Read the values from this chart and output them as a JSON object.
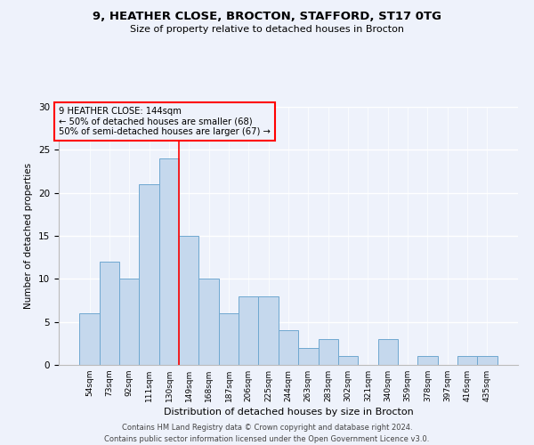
{
  "title1": "9, HEATHER CLOSE, BROCTON, STAFFORD, ST17 0TG",
  "title2": "Size of property relative to detached houses in Brocton",
  "xlabel": "Distribution of detached houses by size in Brocton",
  "ylabel": "Number of detached properties",
  "categories": [
    "54sqm",
    "73sqm",
    "92sqm",
    "111sqm",
    "130sqm",
    "149sqm",
    "168sqm",
    "187sqm",
    "206sqm",
    "225sqm",
    "244sqm",
    "263sqm",
    "283sqm",
    "302sqm",
    "321sqm",
    "340sqm",
    "359sqm",
    "378sqm",
    "397sqm",
    "416sqm",
    "435sqm"
  ],
  "values": [
    6,
    12,
    10,
    21,
    24,
    15,
    10,
    6,
    8,
    8,
    4,
    2,
    3,
    1,
    0,
    3,
    0,
    1,
    0,
    1,
    1
  ],
  "bar_color": "#c5d8ed",
  "bar_edge_color": "#6fa8d0",
  "annotation_line1": "9 HEATHER CLOSE: 144sqm",
  "annotation_line2": "← 50% of detached houses are smaller (68)",
  "annotation_line3": "50% of semi-detached houses are larger (67) →",
  "vline_color": "red",
  "annotation_box_color": "red",
  "ylim": [
    0,
    30
  ],
  "yticks": [
    0,
    5,
    10,
    15,
    20,
    25,
    30
  ],
  "footnote1": "Contains HM Land Registry data © Crown copyright and database right 2024.",
  "footnote2": "Contains public sector information licensed under the Open Government Licence v3.0.",
  "background_color": "#eef2fb"
}
